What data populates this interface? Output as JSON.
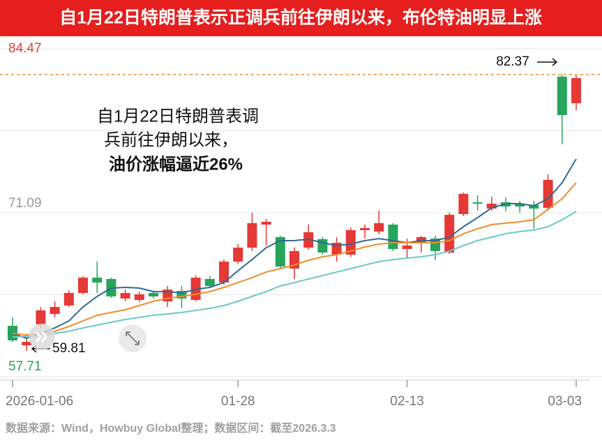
{
  "chart_data": {
    "type": "candlestick",
    "title": "自1月22日特朗普表示正调兵前往伊朗以来，布伦特油明显上涨",
    "annotation": [
      "自1月22日特朗普表调",
      "兵前往伊朗以来，",
      "油价涨幅逼近26%"
    ],
    "source": "数据来源：Wind，Howbuy Global整理；数据区间：截至2026.3.3",
    "max_marker": 82.37,
    "min_marker": 59.81,
    "categories": [
      "2026-01-06",
      null,
      null,
      null,
      null,
      null,
      null,
      null,
      null,
      null,
      null,
      null,
      null,
      null,
      null,
      null,
      "01-28",
      null,
      null,
      null,
      null,
      null,
      null,
      null,
      null,
      null,
      null,
      null,
      "02-13",
      null,
      null,
      null,
      null,
      null,
      null,
      null,
      null,
      null,
      null,
      null,
      "03-03"
    ],
    "open": [
      61.86,
      60.27,
      61.98,
      62.83,
      63.52,
      64.54,
      65.79,
      65.68,
      64.09,
      63.97,
      64.54,
      63.86,
      64.71,
      63.97,
      65.68,
      65.4,
      67.1,
      68.24,
      70.12,
      69.1,
      66.53,
      68.24,
      68.93,
      67.67,
      67.67,
      69.67,
      69.55,
      70.12,
      68.13,
      68.7,
      68.98,
      67.84,
      70.98,
      71.94,
      71.43,
      71.94,
      71.83,
      71.72,
      71.49,
      82.2,
      80.03
    ],
    "high": [
      62.55,
      60.84,
      63.4,
      63.86,
      64.77,
      65.91,
      67.1,
      65.79,
      64.82,
      64.65,
      64.71,
      65.11,
      65.11,
      65.96,
      65.91,
      67.27,
      68.53,
      71.09,
      70.58,
      69.21,
      68.24,
      70.12,
      69.1,
      69.1,
      69.89,
      70.12,
      71.26,
      70.24,
      68.98,
      69.21,
      69.21,
      71.09,
      72.74,
      72.51,
      72.4,
      72.34,
      72.06,
      72.06,
      74.22,
      82.37,
      82.29
    ],
    "low": [
      60.55,
      59.81,
      61.69,
      62.55,
      63.4,
      64.43,
      64.54,
      64.14,
      63.86,
      63.8,
      64.09,
      63.4,
      63.29,
      63.86,
      65.0,
      65.22,
      66.93,
      67.96,
      68.41,
      66.53,
      65.68,
      68.07,
      67.67,
      67.1,
      67.5,
      68.98,
      69.33,
      67.96,
      67.39,
      67.84,
      67.22,
      67.73,
      70.81,
      71.26,
      71.26,
      71.2,
      71.09,
      69.78,
      71.26,
      76.67,
      79.46
    ],
    "close": [
      60.67,
      60.55,
      63.12,
      63.4,
      64.54,
      65.79,
      65.39,
      64.26,
      64.54,
      64.43,
      64.26,
      64.82,
      64.09,
      65.79,
      65.11,
      67.1,
      68.24,
      70.24,
      70.35,
      66.7,
      67.96,
      69.5,
      67.84,
      68.64,
      69.67,
      69.84,
      70.24,
      68.13,
      68.41,
      69.1,
      67.96,
      70.92,
      72.63,
      71.83,
      71.83,
      71.6,
      71.6,
      71.43,
      73.77,
      79.06,
      82.08
    ],
    "up_color": "#e53935",
    "down_color": "#26a55b",
    "series": [
      {
        "color": "#2f6a94",
        "values": [
          61.24,
          60.84,
          61.24,
          61.69,
          62.26,
          63.4,
          64.26,
          64.94,
          65.0,
          64.94,
          64.65,
          64.65,
          64.54,
          64.83,
          65.0,
          65.39,
          66.36,
          67.27,
          68.24,
          68.81,
          68.81,
          68.93,
          68.64,
          68.41,
          68.53,
          68.81,
          68.98,
          68.81,
          68.64,
          68.81,
          68.81,
          69.1,
          69.95,
          70.69,
          71.49,
          71.83,
          71.83,
          71.66,
          72.23,
          73.54,
          75.48
        ]
      },
      {
        "color": "#ef8d2c",
        "values": [
          61.24,
          61.12,
          61.24,
          61.41,
          61.81,
          62.26,
          62.72,
          62.95,
          63.17,
          63.52,
          63.86,
          64.09,
          64.26,
          64.43,
          64.65,
          65.0,
          65.39,
          65.79,
          66.25,
          66.53,
          66.82,
          67.22,
          67.5,
          67.67,
          67.96,
          68.3,
          68.53,
          68.64,
          68.64,
          68.64,
          68.64,
          68.81,
          69.38,
          69.78,
          70.12,
          70.24,
          70.35,
          70.52,
          71.37,
          72.23,
          73.54
        ]
      },
      {
        "color": "#6cc9c9",
        "values": [
          60.95,
          61.01,
          61.01,
          61.24,
          61.41,
          61.69,
          61.92,
          62.15,
          62.38,
          62.55,
          62.72,
          62.83,
          62.95,
          63.12,
          63.29,
          63.52,
          63.86,
          64.26,
          64.65,
          65.11,
          65.39,
          65.68,
          65.96,
          66.25,
          66.53,
          66.82,
          67.1,
          67.27,
          67.39,
          67.5,
          67.67,
          67.96,
          68.41,
          68.81,
          69.1,
          69.38,
          69.55,
          69.67,
          69.95,
          70.52,
          71.2
        ]
      }
    ],
    "ylim": [
      57.71,
      84.47
    ],
    "yticks": [
      57.71,
      71.09,
      84.47
    ],
    "ytick_colors": [
      "#26a55b",
      "#999999",
      "#d9423a"
    ],
    "grid_lines": [
      64.4,
      77.78
    ],
    "grid": true
  }
}
